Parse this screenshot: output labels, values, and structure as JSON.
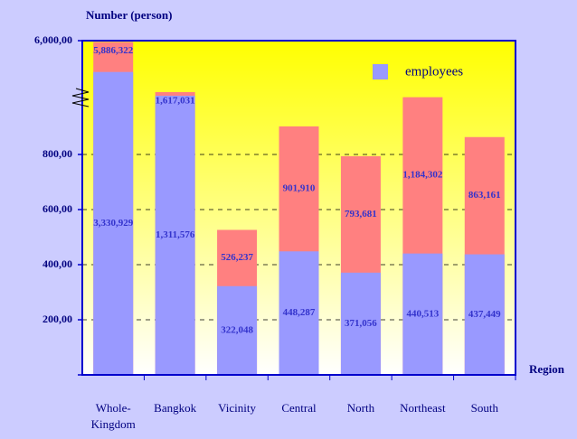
{
  "chart_data": {
    "type": "bar",
    "title": "Number (person)",
    "x_label": "Region",
    "categories": [
      "Whole-Kingdom",
      "Bangkok",
      "Vicinity",
      "Central",
      "North",
      "Northeast",
      "South"
    ],
    "series": [
      {
        "name": "employees",
        "color": "#9999ff",
        "values": [
          3330929,
          1311576,
          322048,
          448287,
          371056,
          440513,
          437449
        ],
        "value_labels": [
          "3,330,929",
          "1,311,576",
          "322,048",
          "448,287",
          "371,056",
          "440,513",
          "437,449"
        ]
      },
      {
        "color": "#ff8080",
        "values": [
          5886322,
          1617031,
          526237,
          901910,
          793681,
          1184302,
          863161
        ],
        "value_labels": [
          "5,886,322",
          "1,617,031",
          "526,237",
          "901,910",
          "793,681",
          "1,184,302",
          "863,161"
        ]
      }
    ],
    "ylim": [
      0,
      6000000
    ],
    "y_break": 1000000,
    "yticks": [
      0,
      {
        "value": 200000,
        "label": "200,00"
      },
      {
        "value": 400000,
        "label": "400,00"
      },
      {
        "value": 600000,
        "label": "600,00"
      },
      {
        "value": 800000,
        "label": "800,00"
      },
      {
        "value": 6000000,
        "label": "6,000,00"
      }
    ],
    "grid": true,
    "legend": "top-right"
  }
}
